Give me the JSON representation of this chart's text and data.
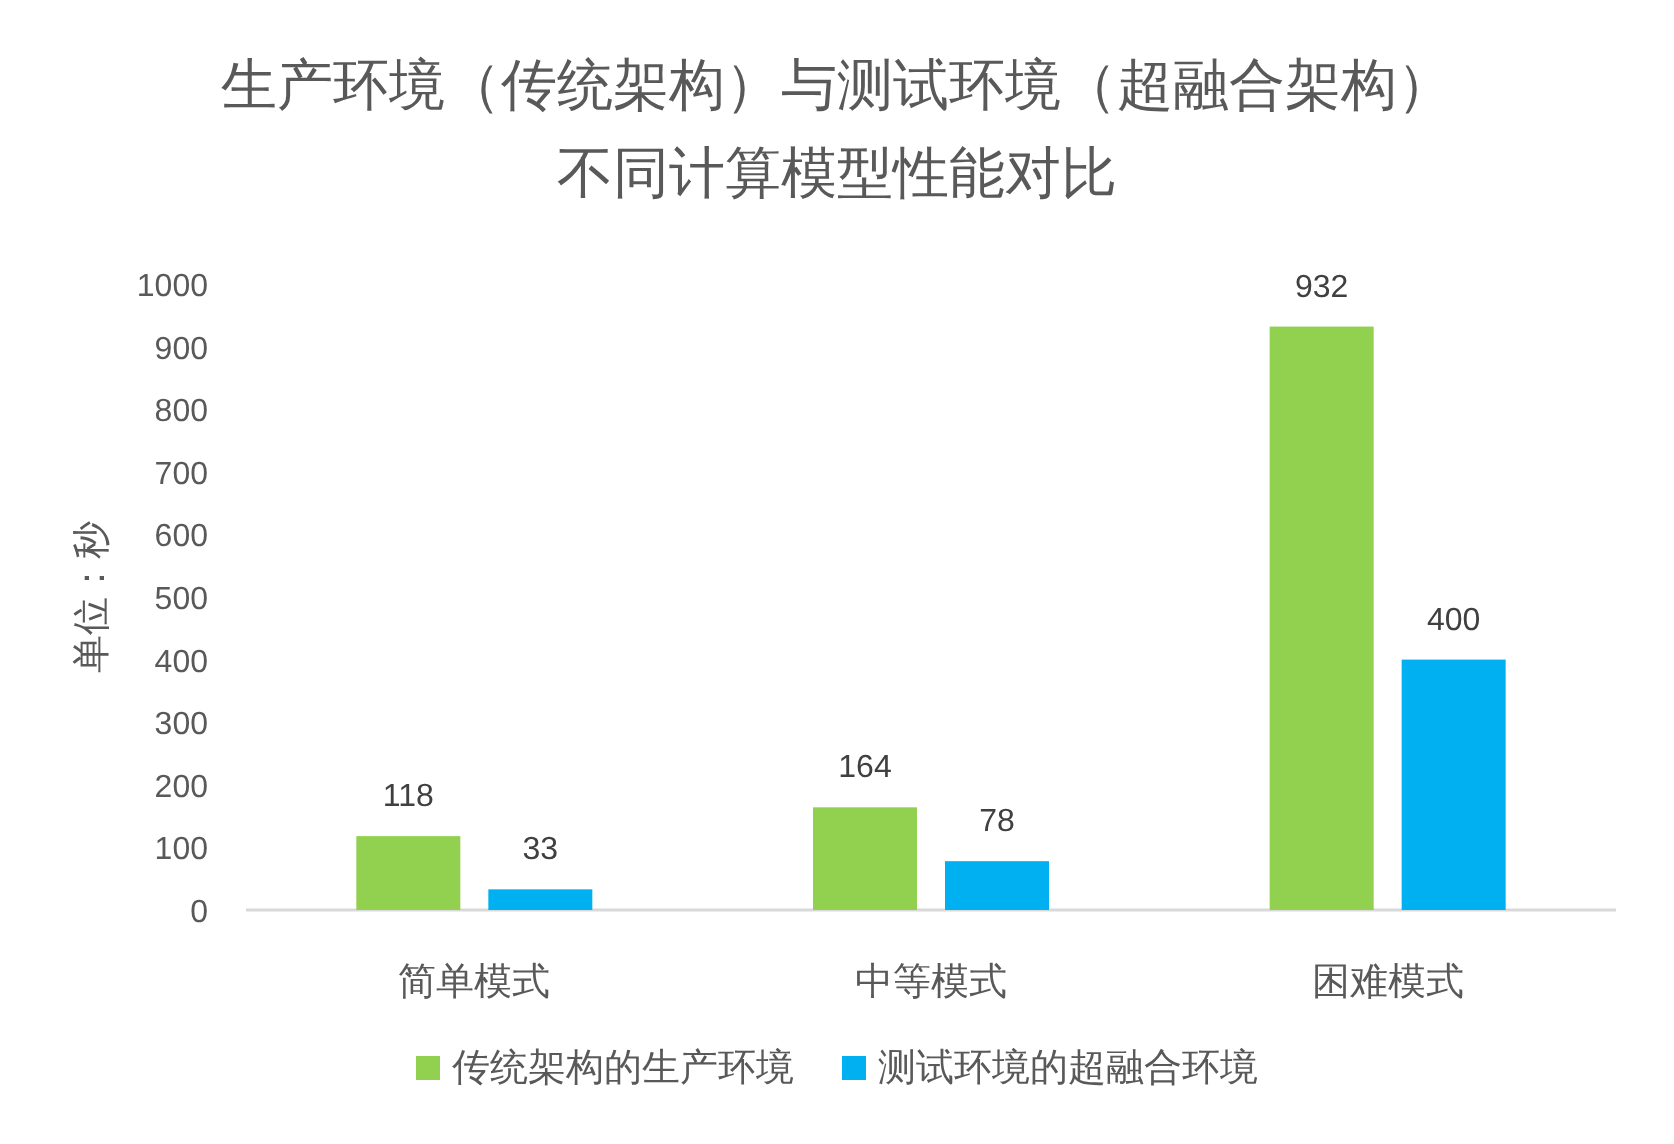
{
  "chart_data": {
    "type": "bar",
    "title": "生产环境（传统架构）与测试环境（超融合架构）",
    "subtitle": "不同计算模型性能对比",
    "ylabel": "单位：秒",
    "categories": [
      "简单模式",
      "中等模式",
      "困难模式"
    ],
    "series": [
      {
        "name": "传统架构的生产环境",
        "color": "#92d050",
        "values": [
          118,
          164,
          932
        ]
      },
      {
        "name": "测试环境的超融合环境",
        "color": "#00b0f0",
        "values": [
          33,
          78,
          400
        ]
      }
    ],
    "ylim": [
      0,
      1000
    ],
    "yticks": [
      0,
      100,
      200,
      300,
      400,
      500,
      600,
      700,
      800,
      900,
      1000
    ],
    "grid": false,
    "legend": "bottom",
    "data_labels": true
  }
}
